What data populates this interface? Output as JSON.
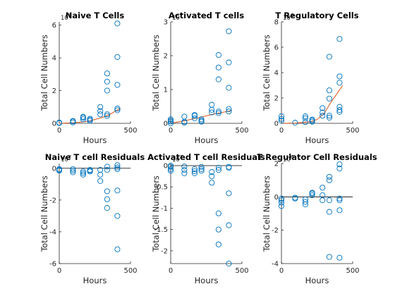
{
  "chart_data": [
    {
      "type": "scatter",
      "title": "Naive T Cells",
      "xlabel": "Hours",
      "ylabel": "Total Cell Numbers",
      "exponent": "10",
      "exponent_power": "8",
      "xlim": [
        0,
        500
      ],
      "ylim": [
        0,
        6.2
      ],
      "xticks": [
        0,
        500
      ],
      "yticks": [
        0,
        2,
        4,
        6
      ],
      "points": [
        [
          0,
          0.02
        ],
        [
          0,
          0.03
        ],
        [
          0,
          0.05
        ],
        [
          96,
          0.05
        ],
        [
          96,
          0.12
        ],
        [
          96,
          0.15
        ],
        [
          168,
          0.25
        ],
        [
          168,
          0.35
        ],
        [
          168,
          0.4
        ],
        [
          216,
          0.15
        ],
        [
          216,
          0.22
        ],
        [
          216,
          0.28
        ],
        [
          288,
          0.55
        ],
        [
          288,
          0.75
        ],
        [
          288,
          1.0
        ],
        [
          336,
          0.45
        ],
        [
          336,
          0.55
        ],
        [
          336,
          2.0
        ],
        [
          336,
          2.55
        ],
        [
          336,
          3.05
        ],
        [
          408,
          0.8
        ],
        [
          408,
          0.9
        ],
        [
          408,
          2.35
        ],
        [
          408,
          4.05
        ],
        [
          408,
          6.1
        ]
      ],
      "fit": [
        [
          0,
          0
        ],
        [
          100,
          0.03
        ],
        [
          200,
          0.12
        ],
        [
          300,
          0.35
        ],
        [
          350,
          0.52
        ],
        [
          430,
          0.92
        ]
      ]
    },
    {
      "type": "scatter",
      "title": "Activated T cells",
      "xlabel": "Hours",
      "ylabel": "Total Cell Numbers",
      "exponent": "10",
      "exponent_power": "7",
      "xlim": [
        0,
        500
      ],
      "ylim": [
        0,
        3
      ],
      "xticks": [
        0,
        500
      ],
      "yticks": [
        0,
        1,
        2,
        3
      ],
      "points": [
        [
          0,
          0
        ],
        [
          0,
          0.05
        ],
        [
          0,
          0.08
        ],
        [
          0,
          0.12
        ],
        [
          96,
          0.02
        ],
        [
          96,
          0.05
        ],
        [
          96,
          0.2
        ],
        [
          168,
          0.15
        ],
        [
          168,
          0.22
        ],
        [
          168,
          0.25
        ],
        [
          216,
          0.05
        ],
        [
          216,
          0.08
        ],
        [
          216,
          0.12
        ],
        [
          288,
          0.32
        ],
        [
          288,
          0.4
        ],
        [
          288,
          0.55
        ],
        [
          336,
          0.3
        ],
        [
          336,
          0.35
        ],
        [
          336,
          1.3
        ],
        [
          336,
          1.65
        ],
        [
          336,
          2.02
        ],
        [
          408,
          0.35
        ],
        [
          408,
          0.42
        ],
        [
          408,
          1.05
        ],
        [
          408,
          1.8
        ],
        [
          408,
          2.72
        ]
      ],
      "fit": [
        [
          0,
          0
        ],
        [
          100,
          0.08
        ],
        [
          200,
          0.17
        ],
        [
          300,
          0.27
        ],
        [
          430,
          0.38
        ]
      ]
    },
    {
      "type": "scatter",
      "title": "T Regulatory Cells",
      "xlabel": "Hours",
      "ylabel": "Total Cell Numbers",
      "exponent": "10",
      "exponent_power": "6",
      "xlim": [
        0,
        500
      ],
      "ylim": [
        0,
        8
      ],
      "xticks": [
        0,
        500
      ],
      "yticks": [
        0,
        2,
        4,
        6,
        8
      ],
      "points": [
        [
          0,
          0.2
        ],
        [
          0,
          0.35
        ],
        [
          0,
          0.55
        ],
        [
          96,
          0.05
        ],
        [
          168,
          0.1
        ],
        [
          168,
          0.4
        ],
        [
          168,
          0.55
        ],
        [
          216,
          0.12
        ],
        [
          216,
          0.22
        ],
        [
          216,
          0.3
        ],
        [
          288,
          0.6
        ],
        [
          288,
          0.85
        ],
        [
          288,
          1.2
        ],
        [
          336,
          0.45
        ],
        [
          336,
          0.6
        ],
        [
          336,
          1.95
        ],
        [
          336,
          2.6
        ],
        [
          336,
          5.25
        ],
        [
          408,
          0.9
        ],
        [
          408,
          1.05
        ],
        [
          408,
          1.3
        ],
        [
          408,
          3.2
        ],
        [
          408,
          3.7
        ],
        [
          408,
          6.65
        ]
      ],
      "fit": [
        [
          0,
          0
        ],
        [
          100,
          0.02
        ],
        [
          200,
          0.12
        ],
        [
          250,
          0.3
        ],
        [
          300,
          0.8
        ],
        [
          350,
          1.7
        ],
        [
          430,
          3.0
        ]
      ]
    },
    {
      "type": "scatter",
      "title": "Naive T cell Residuals",
      "xlabel": "Hours",
      "ylabel": "Total Cell Numbers",
      "exponent": "10",
      "exponent_power": "7",
      "xlim": [
        0,
        500
      ],
      "ylim": [
        -6,
        0.3
      ],
      "xticks": [
        0,
        500
      ],
      "yticks": [
        -6,
        -4,
        -2,
        0
      ],
      "points": [
        [
          0,
          -0.05
        ],
        [
          0,
          -0.1
        ],
        [
          0,
          -0.15
        ],
        [
          96,
          -0.05
        ],
        [
          96,
          -0.15
        ],
        [
          96,
          -0.25
        ],
        [
          168,
          -0.2
        ],
        [
          168,
          -0.3
        ],
        [
          168,
          -0.4
        ],
        [
          216,
          -0.1
        ],
        [
          216,
          -0.15
        ],
        [
          216,
          -0.2
        ],
        [
          288,
          -0.1
        ],
        [
          288,
          -0.4
        ],
        [
          288,
          -0.8
        ],
        [
          336,
          -1.45
        ],
        [
          336,
          -1.95
        ],
        [
          336,
          -2.5
        ],
        [
          336,
          -0.1
        ],
        [
          336,
          0.1
        ],
        [
          408,
          -0.05
        ],
        [
          408,
          0.05
        ],
        [
          408,
          0.2
        ],
        [
          408,
          -1.4
        ],
        [
          408,
          -3.0
        ],
        [
          408,
          -5.1
        ]
      ],
      "zero_line": true
    },
    {
      "type": "scatter",
      "title": "Activated T cell Residuals",
      "xlabel": "Hours",
      "ylabel": "Total Cell Numbers",
      "exponent": "10",
      "exponent_power": "7",
      "xlim": [
        0,
        500
      ],
      "ylim": [
        -2.3,
        0.05
      ],
      "xticks": [
        0,
        500
      ],
      "yticks": [
        -2,
        -1.5,
        -1,
        -0.5,
        0
      ],
      "points": [
        [
          0,
          0
        ],
        [
          0,
          -0.03
        ],
        [
          0,
          -0.08
        ],
        [
          0,
          -0.12
        ],
        [
          96,
          -0.02
        ],
        [
          96,
          -0.1
        ],
        [
          96,
          -0.18
        ],
        [
          168,
          -0.08
        ],
        [
          168,
          -0.13
        ],
        [
          168,
          -0.18
        ],
        [
          216,
          -0.03
        ],
        [
          216,
          -0.08
        ],
        [
          216,
          -0.12
        ],
        [
          288,
          -0.15
        ],
        [
          288,
          -0.25
        ],
        [
          288,
          -0.4
        ],
        [
          336,
          -0.05
        ],
        [
          336,
          -0.1
        ],
        [
          336,
          -1.12
        ],
        [
          336,
          -1.5
        ],
        [
          336,
          -1.85
        ],
        [
          408,
          -0.05
        ],
        [
          408,
          -0.03
        ],
        [
          408,
          -0.65
        ],
        [
          408,
          -1.4
        ],
        [
          408,
          -2.3
        ]
      ],
      "zero_line": true
    },
    {
      "type": "scatter",
      "title": "T Regulator Cell Residuals",
      "xlabel": "Hours",
      "ylabel": "Total Cell Numbers",
      "exponent": "10",
      "exponent_power": "6",
      "xlim": [
        0,
        500
      ],
      "ylim": [
        -4,
        2
      ],
      "xticks": [
        0,
        500
      ],
      "yticks": [
        -4,
        -2,
        0,
        2
      ],
      "points": [
        [
          0,
          -0.1
        ],
        [
          0,
          -0.2
        ],
        [
          0,
          -0.35
        ],
        [
          0,
          -0.55
        ],
        [
          96,
          -0.05
        ],
        [
          96,
          -0.1
        ],
        [
          168,
          -0.15
        ],
        [
          168,
          -0.3
        ],
        [
          168,
          -0.45
        ],
        [
          216,
          0.1
        ],
        [
          216,
          0.2
        ],
        [
          216,
          0.25
        ],
        [
          288,
          -0.2
        ],
        [
          288,
          0.1
        ],
        [
          288,
          0.55
        ],
        [
          336,
          -0.2
        ],
        [
          336,
          1.0
        ],
        [
          336,
          1.2
        ],
        [
          336,
          -0.9
        ],
        [
          336,
          -3.6
        ],
        [
          408,
          1.7
        ],
        [
          408,
          1.95
        ],
        [
          408,
          -0.1
        ],
        [
          408,
          -0.2
        ],
        [
          408,
          -0.8
        ],
        [
          408,
          -3.65
        ]
      ],
      "zero_line": true
    }
  ],
  "colors": {
    "marker": "#0072BD",
    "fit": "#D95319",
    "axis": "#262626",
    "zero_line": "#000000"
  }
}
